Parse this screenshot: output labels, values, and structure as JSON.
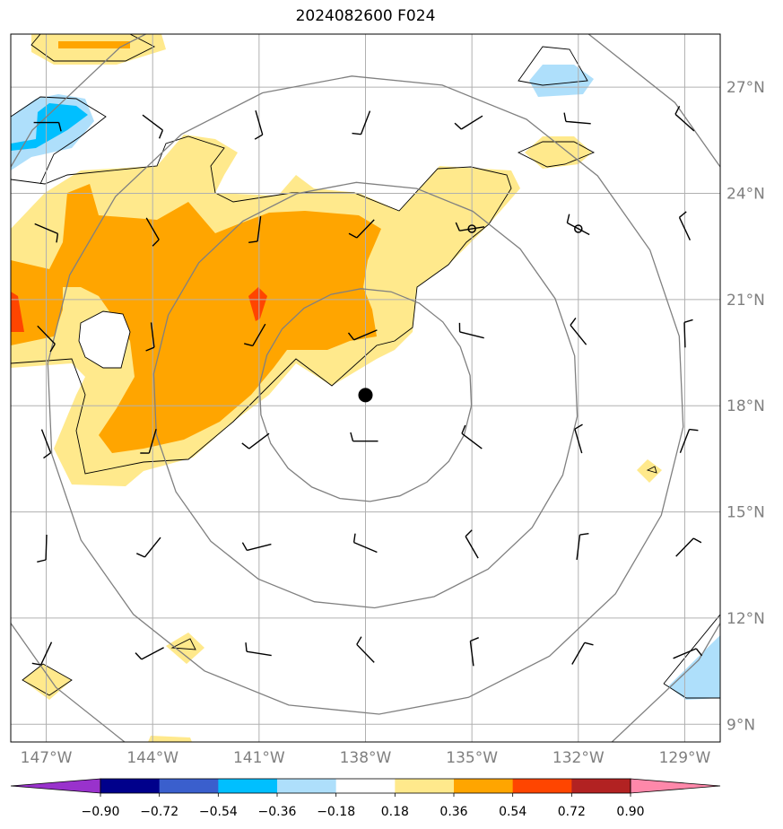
{
  "title": "2024082600 F024",
  "map": {
    "lon_range": [
      -148,
      -128
    ],
    "lat_range": [
      8.5,
      28.5
    ],
    "center_marker": {
      "lon": -138,
      "lat": 18.3
    },
    "small_markers": [
      {
        "lon": -135,
        "lat": 23
      },
      {
        "lon": -132,
        "lat": 23
      }
    ],
    "range_rings_deg": [
      3,
      6,
      9,
      12
    ],
    "colors": {
      "ring": "#808080",
      "grid": "#b0b0b0",
      "light_yellow": "#ffe98c",
      "orange": "#ffa500",
      "red_orange": "#ff4500",
      "light_blue": "#aedffb",
      "blue": "#00bfff"
    }
  },
  "lat_labels": [
    {
      "lat": 27,
      "text": "27°N"
    },
    {
      "lat": 24,
      "text": "24°N"
    },
    {
      "lat": 21,
      "text": "21°N"
    },
    {
      "lat": 18,
      "text": "18°N"
    },
    {
      "lat": 15,
      "text": "15°N"
    },
    {
      "lat": 12,
      "text": "12°N"
    },
    {
      "lat": 9,
      "text": "9°N"
    }
  ],
  "lon_labels": [
    {
      "lon": -147,
      "text": "147°W"
    },
    {
      "lon": -144,
      "text": "144°W"
    },
    {
      "lon": -141,
      "text": "141°W"
    },
    {
      "lon": -138,
      "text": "138°W"
    },
    {
      "lon": -135,
      "text": "135°W"
    },
    {
      "lon": -132,
      "text": "132°W"
    },
    {
      "lon": -129,
      "text": "129°W"
    }
  ],
  "colorbar": {
    "colors": [
      "#9932cc",
      "#00008b",
      "#3a5fcd",
      "#00bfff",
      "#aedffb",
      "#ffffff",
      "#ffe98c",
      "#ffa500",
      "#ff4500",
      "#b22222",
      "#ff88aa"
    ],
    "tick_labels": [
      "−0.90",
      "−0.72",
      "−0.54",
      "−0.36",
      "−0.18",
      "0.18",
      "0.36",
      "0.54",
      "0.72",
      "0.90"
    ]
  }
}
